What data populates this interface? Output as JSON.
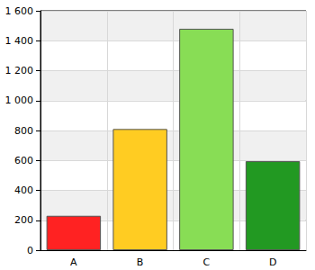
{
  "chart_data": {
    "type": "bar",
    "categories": [
      "A",
      "B",
      "C",
      "D"
    ],
    "values": [
      230,
      810,
      1480,
      595
    ],
    "colors": [
      "#ff2222",
      "#ffcc22",
      "#88dd55",
      "#229922"
    ],
    "ylim": [
      0,
      1600
    ],
    "yticks": [
      0,
      200,
      400,
      600,
      800,
      {
        "value": 1000,
        "label": "1 000"
      },
      {
        "value": 1200,
        "label": "1 200"
      },
      {
        "value": 1400,
        "label": "1 400"
      },
      {
        "value": 1600,
        "label": "1 600"
      }
    ],
    "grid": true
  }
}
